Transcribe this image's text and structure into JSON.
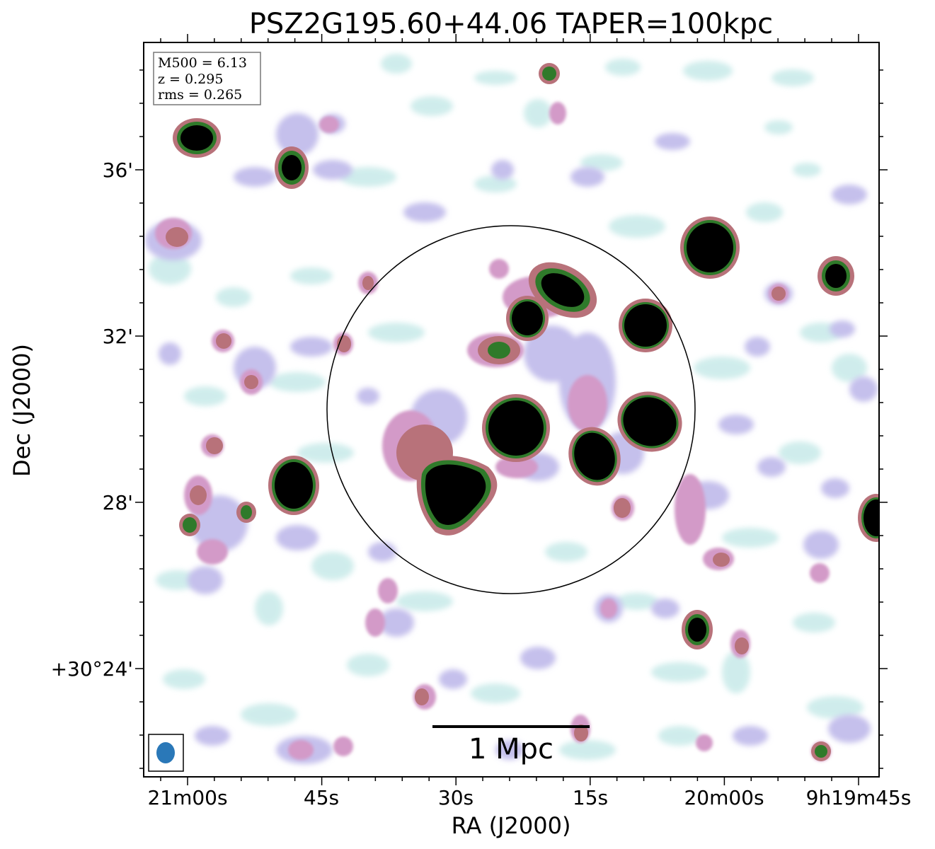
{
  "figure": {
    "title": "PSZ2G195.60+44.06 TAPER=100kpc",
    "xlabel": "RA (J2000)",
    "ylabel": "Dec (J2000)",
    "x_ticks": [
      "21m00s",
      "45s",
      "30s",
      "15s",
      "20m00s",
      "9h19m45s"
    ],
    "y_ticks": [
      "36'",
      "32'",
      "28'",
      "+30°24'"
    ],
    "info_box": {
      "m500": "M500 = 6.13",
      "z": "z = 0.295",
      "rms": "rms = 0.265"
    },
    "scalebar_label": "1 Mpc",
    "colors": {
      "faint": "#cdeceb",
      "low": "#c5c0ec",
      "mid": "#d39ac8",
      "high": "#b8727a",
      "peak": "#2f7a2a",
      "core": "#000000",
      "beam": "#2a78b8"
    }
  }
}
